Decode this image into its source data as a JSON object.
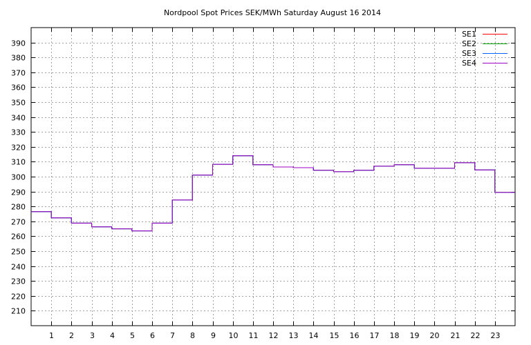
{
  "chart_data": {
    "type": "line",
    "step": true,
    "title": "Nordpool Spot Prices SEK/MWh Saturday August 16 2014",
    "xlabel": "",
    "ylabel": "",
    "xlim": [
      0,
      24
    ],
    "ylim": [
      200,
      400
    ],
    "x_ticks": [
      1,
      2,
      3,
      4,
      5,
      6,
      7,
      8,
      9,
      10,
      11,
      12,
      13,
      14,
      15,
      16,
      17,
      18,
      19,
      20,
      21,
      22,
      23
    ],
    "y_ticks": [
      210,
      220,
      230,
      240,
      250,
      260,
      270,
      280,
      290,
      300,
      310,
      320,
      330,
      340,
      350,
      360,
      370,
      380,
      390
    ],
    "grid": true,
    "legend_position": "top-right",
    "series": [
      {
        "name": "SE1",
        "color": "#ff0000",
        "values": [
          276.5,
          272.3,
          268.8,
          266.3,
          265.0,
          263.6,
          268.8,
          284.3,
          301.0,
          308.3,
          314.0,
          308.0,
          306.5,
          306.0,
          304.3,
          303.3,
          304.3,
          307.0,
          308.0,
          305.6,
          305.6,
          309.3,
          304.5,
          289.4
        ]
      },
      {
        "name": "SE2",
        "color": "#00a000",
        "values": [
          276.5,
          272.3,
          268.8,
          266.3,
          265.0,
          263.6,
          268.8,
          284.3,
          301.0,
          308.3,
          314.0,
          308.0,
          306.5,
          306.0,
          304.3,
          303.3,
          304.3,
          307.0,
          308.0,
          305.6,
          305.6,
          309.3,
          304.5,
          289.4
        ]
      },
      {
        "name": "SE3",
        "color": "#0066ff",
        "values": [
          276.5,
          272.3,
          268.8,
          266.3,
          265.0,
          263.6,
          268.8,
          284.3,
          301.0,
          308.3,
          314.0,
          308.0,
          306.5,
          306.0,
          304.3,
          303.3,
          304.3,
          307.0,
          308.0,
          305.6,
          305.6,
          309.3,
          304.5,
          289.4
        ]
      },
      {
        "name": "SE4",
        "color": "#a000c8",
        "values": [
          276.5,
          272.3,
          268.8,
          266.3,
          265.0,
          263.6,
          268.8,
          284.3,
          301.0,
          308.3,
          314.0,
          308.0,
          306.5,
          306.0,
          304.3,
          303.3,
          304.3,
          307.0,
          308.0,
          305.6,
          305.6,
          309.3,
          304.5,
          289.4
        ]
      }
    ]
  }
}
